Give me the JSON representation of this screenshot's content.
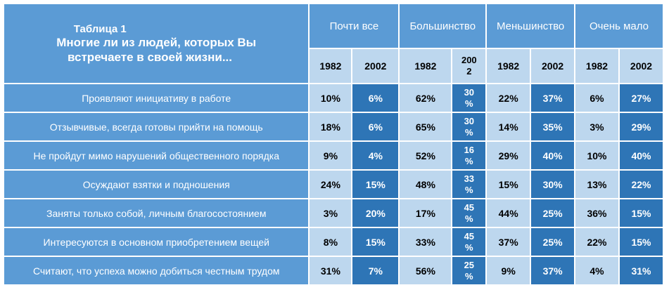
{
  "table": {
    "title_line1": "Таблица 1",
    "title_line2": "Многие ли из людей, которых Вы",
    "title_line3": "встречаете в своей жизни...",
    "groups": [
      "Почти все",
      "Большинство",
      "Меньшинство",
      "Очень мало"
    ],
    "years": [
      "1982",
      "2002",
      "1982",
      "200\n2",
      "1982",
      "2002",
      "1982",
      "2002"
    ],
    "rows": [
      {
        "label": "Проявляют инициативу в работе",
        "values": [
          "10%",
          "6%",
          "62%",
          "30\n%",
          "22%",
          "37%",
          "6%",
          "27%"
        ]
      },
      {
        "label": "Отзывчивые, всегда готовы прийти на помощь",
        "values": [
          "18%",
          "6%",
          "65%",
          "30\n%",
          "14%",
          "35%",
          "3%",
          "29%"
        ]
      },
      {
        "label": "Не пройдут мимо нарушений общественного порядка",
        "values": [
          "9%",
          "4%",
          "52%",
          "16\n%",
          "29%",
          "40%",
          "10%",
          "40%"
        ]
      },
      {
        "label": "Осуждают взятки и подношения",
        "values": [
          "24%",
          "15%",
          "48%",
          "33\n%",
          "15%",
          "30%",
          "13%",
          "22%"
        ]
      },
      {
        "label": "Заняты только собой, личным благосостоянием",
        "values": [
          "3%",
          "20%",
          "17%",
          "45\n%",
          "44%",
          "25%",
          "36%",
          "15%"
        ]
      },
      {
        "label": "Интересуются в основном приобретением вещей",
        "values": [
          "8%",
          "15%",
          "33%",
          "45\n%",
          "37%",
          "25%",
          "22%",
          "15%"
        ]
      },
      {
        "label": "Считают, что успеха можно добиться честным трудом",
        "values": [
          "31%",
          "7%",
          "56%",
          "25\n%",
          "9%",
          "37%",
          "4%",
          "31%"
        ]
      }
    ]
  }
}
